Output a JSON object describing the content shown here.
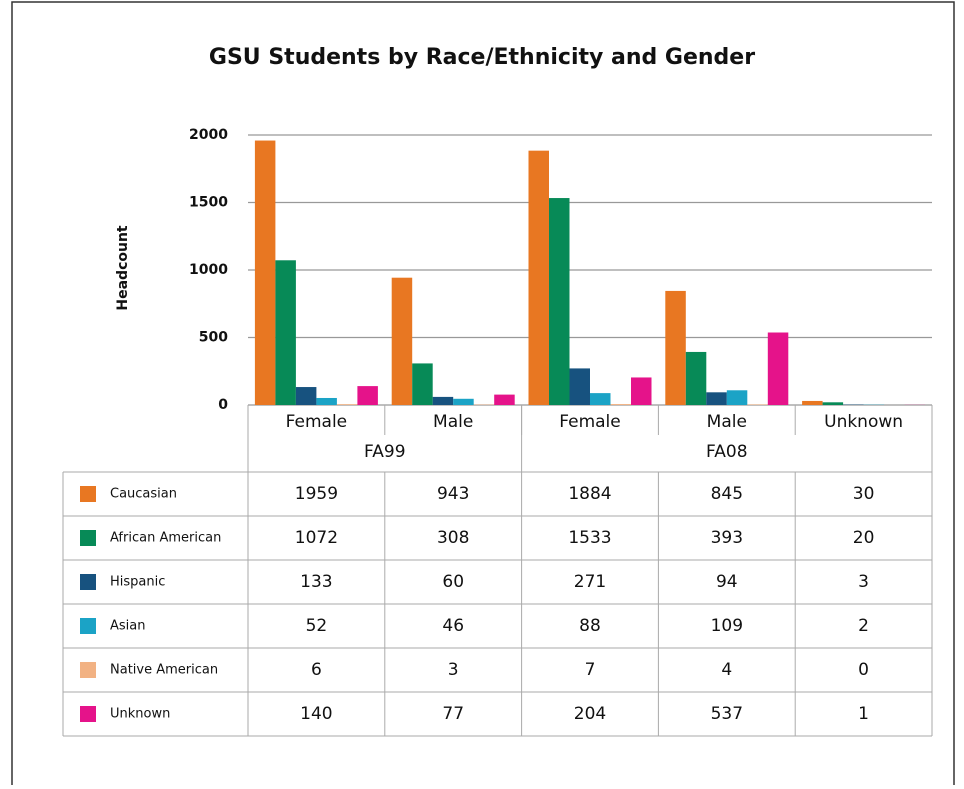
{
  "chart_data": {
    "type": "bar",
    "title": "GSU Students by Race/Ethnicity and Gender",
    "y_label": "Headcount",
    "groups": [
      {
        "name": "FA99",
        "categories": [
          "Female",
          "Male"
        ]
      },
      {
        "name": "FA08",
        "categories": [
          "Female",
          "Male",
          "Unknown"
        ]
      }
    ],
    "series": [
      {
        "name": "Caucasian",
        "color": "#e87722",
        "values": [
          1959,
          943,
          1884,
          845,
          30
        ]
      },
      {
        "name": "African American",
        "color": "#078a57",
        "values": [
          1072,
          308,
          1533,
          393,
          20
        ]
      },
      {
        "name": "Hispanic",
        "color": "#17527f",
        "values": [
          133,
          60,
          271,
          94,
          3
        ]
      },
      {
        "name": "Asian",
        "color": "#1ba3c6",
        "values": [
          52,
          46,
          88,
          109,
          2
        ]
      },
      {
        "name": "Native American",
        "color": "#f2b283",
        "values": [
          6,
          3,
          7,
          4,
          0
        ]
      },
      {
        "name": "Unknown",
        "color": "#e5138a",
        "values": [
          140,
          77,
          204,
          537,
          1
        ]
      }
    ],
    "ylim": [
      0,
      2000
    ],
    "yticks": [
      0,
      500,
      1000,
      1500,
      2000
    ],
    "grid": true
  }
}
